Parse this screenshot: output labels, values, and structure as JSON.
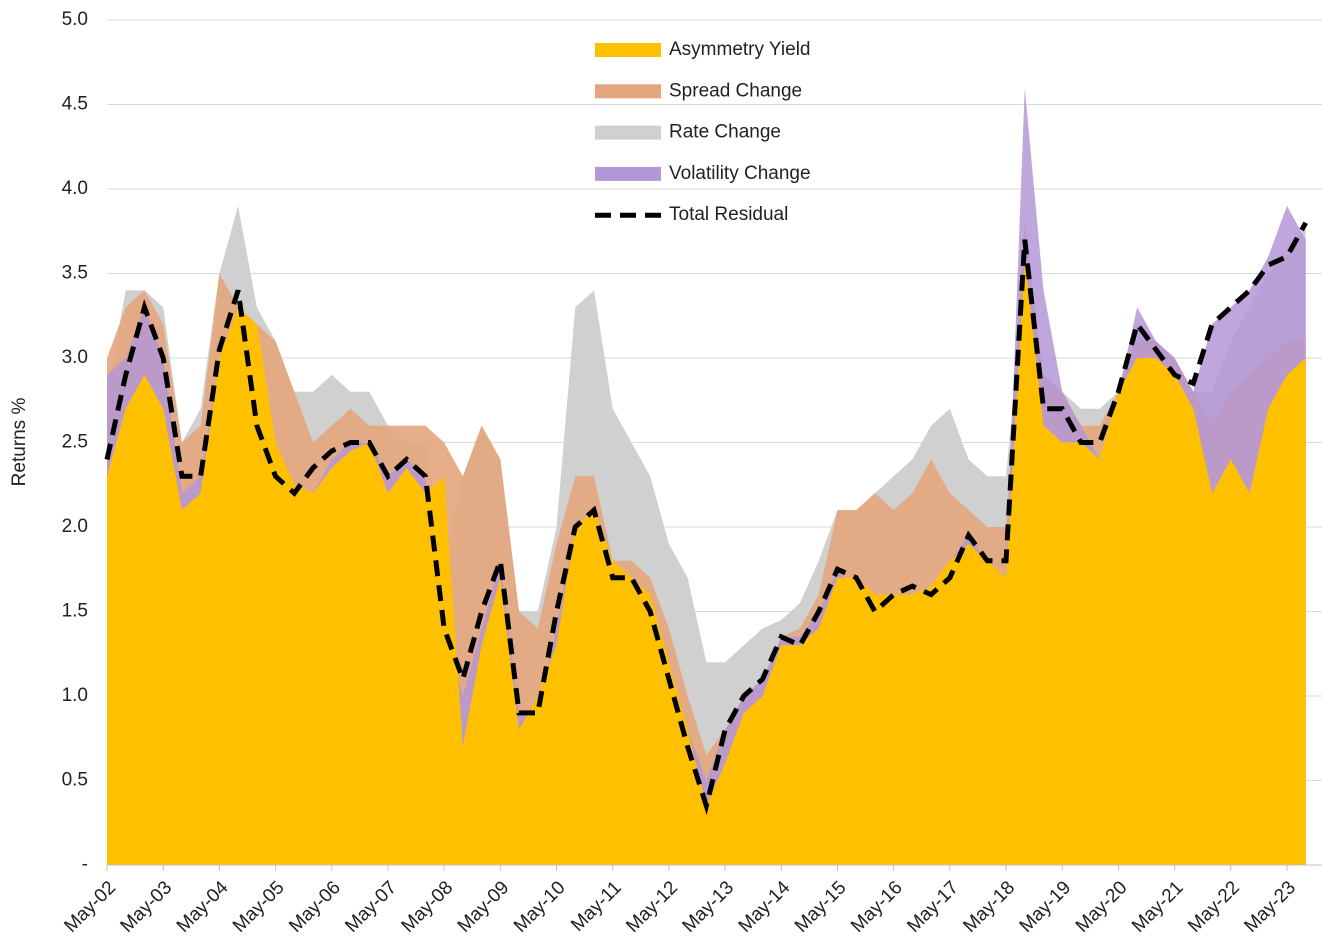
{
  "chart_data": {
    "type": "area",
    "y_label": "Returns %",
    "categories": [
      "May-02",
      null,
      null,
      "May-03",
      null,
      null,
      "May-04",
      null,
      null,
      "May-05",
      null,
      null,
      "May-06",
      null,
      null,
      "May-07",
      null,
      null,
      "May-08",
      null,
      null,
      "May-09",
      null,
      null,
      "May-10",
      null,
      null,
      "May-11",
      null,
      null,
      "May-12",
      null,
      null,
      "May-13",
      null,
      null,
      "May-14",
      null,
      null,
      "May-15",
      null,
      null,
      "May-16",
      null,
      null,
      "May-17",
      null,
      null,
      "May-18",
      null,
      null,
      "May-19",
      null,
      null,
      "May-20",
      null,
      null,
      "May-21",
      null,
      null,
      "May-22",
      null,
      null,
      "May-23",
      null
    ],
    "ylim": [
      0,
      5
    ],
    "yticks": [
      {
        "value": 0,
        "label": "-"
      },
      0.5,
      {
        "value": 1,
        "label": "1.0"
      },
      1.5,
      {
        "value": 2,
        "label": "2.0"
      },
      2.5,
      {
        "value": 3,
        "label": "3.0"
      },
      3.5,
      {
        "value": 4,
        "label": "4.0"
      },
      4.5,
      {
        "value": 5,
        "label": "5.0"
      }
    ],
    "grid": true,
    "series": [
      {
        "name": "Asymmetry Yield",
        "color": "#ffc000",
        "values": [
          2.3,
          2.7,
          2.9,
          2.7,
          2.1,
          2.2,
          3.0,
          3.3,
          3.2,
          2.5,
          2.25,
          2.2,
          2.35,
          2.45,
          2.5,
          2.2,
          2.35,
          2.2,
          2.3,
          0.7,
          1.3,
          1.7,
          0.8,
          1.0,
          1.3,
          2.0,
          2.1,
          1.8,
          1.7,
          1.6,
          1.2,
          0.8,
          0.35,
          0.6,
          0.9,
          1.0,
          1.3,
          1.3,
          1.4,
          1.7,
          1.7,
          1.6,
          1.6,
          1.6,
          1.65,
          1.8,
          1.9,
          1.8,
          1.7,
          3.6,
          2.6,
          2.5,
          2.5,
          2.4,
          2.8,
          3.0,
          3.0,
          2.9,
          2.7,
          2.2,
          2.4,
          2.2,
          2.7,
          2.9,
          3.0
        ]
      },
      {
        "name": "Spread Change",
        "color": "#e4a67c",
        "values": [
          3.0,
          3.3,
          3.4,
          3.2,
          2.5,
          2.6,
          3.5,
          3.3,
          3.2,
          3.1,
          2.8,
          2.5,
          2.6,
          2.7,
          2.6,
          2.6,
          2.6,
          2.6,
          2.5,
          2.3,
          2.6,
          2.4,
          1.5,
          1.4,
          1.9,
          2.3,
          2.3,
          1.8,
          1.8,
          1.7,
          1.4,
          1.0,
          0.65,
          0.8,
          1.0,
          1.1,
          1.35,
          1.4,
          1.6,
          2.1,
          2.1,
          2.2,
          2.1,
          2.2,
          2.4,
          2.2,
          2.1,
          2.0,
          2.0,
          3.8,
          2.9,
          2.8,
          2.6,
          2.6,
          2.8,
          3.1,
          3.1,
          3.0,
          2.8,
          2.6,
          2.8,
          2.9,
          3.0,
          3.1,
          3.1
        ]
      },
      {
        "name": "Rate Change",
        "color": "#d0d0d0",
        "values": [
          2.8,
          3.4,
          3.4,
          3.3,
          2.5,
          2.7,
          3.5,
          3.9,
          3.3,
          3.1,
          2.8,
          2.8,
          2.9,
          2.8,
          2.8,
          2.6,
          2.5,
          2.5,
          1.8,
          2.3,
          2.6,
          2.4,
          1.5,
          1.5,
          2.0,
          3.3,
          3.4,
          2.7,
          2.5,
          2.3,
          1.9,
          1.7,
          1.2,
          1.2,
          1.3,
          1.4,
          1.45,
          1.55,
          1.8,
          2.1,
          2.1,
          2.2,
          2.3,
          2.4,
          2.6,
          2.7,
          2.4,
          2.3,
          2.3,
          3.5,
          2.9,
          2.8,
          2.7,
          2.7,
          2.8,
          3.2,
          3.1,
          3.0,
          2.8,
          2.8,
          3.1,
          3.3,
          3.5,
          3.6,
          3.8
        ]
      },
      {
        "name": "Volatility Change",
        "color": "#b497d6",
        "values": [
          2.9,
          3.0,
          3.3,
          3.0,
          2.2,
          2.3,
          3.0,
          3.3,
          2.7,
          2.3,
          2.2,
          2.2,
          2.4,
          2.5,
          2.5,
          2.3,
          2.4,
          2.3,
          1.4,
          1.0,
          1.4,
          1.8,
          0.9,
          0.9,
          1.4,
          2.0,
          2.1,
          1.7,
          1.7,
          1.5,
          1.1,
          0.8,
          0.5,
          0.8,
          1.0,
          1.1,
          1.35,
          1.35,
          1.5,
          1.75,
          1.6,
          1.5,
          1.6,
          1.6,
          1.6,
          1.8,
          1.95,
          1.8,
          1.7,
          4.6,
          3.4,
          2.8,
          2.6,
          2.4,
          2.8,
          3.3,
          3.1,
          3.0,
          2.8,
          3.2,
          3.3,
          3.4,
          3.6,
          3.9,
          3.7
        ]
      },
      {
        "name": "Total Residual",
        "color": "#000000",
        "line": "dashed",
        "values": [
          2.4,
          2.9,
          3.3,
          3.0,
          2.3,
          2.3,
          3.05,
          3.4,
          2.6,
          2.3,
          2.2,
          2.35,
          2.45,
          2.5,
          2.5,
          2.3,
          2.4,
          2.3,
          1.4,
          1.1,
          1.5,
          1.8,
          0.9,
          0.9,
          1.5,
          2.0,
          2.1,
          1.7,
          1.7,
          1.5,
          1.1,
          0.7,
          0.35,
          0.8,
          1.0,
          1.1,
          1.35,
          1.3,
          1.5,
          1.75,
          1.7,
          1.5,
          1.6,
          1.65,
          1.6,
          1.7,
          1.95,
          1.8,
          1.8,
          3.7,
          2.7,
          2.7,
          2.5,
          2.5,
          2.8,
          3.2,
          3.05,
          2.9,
          2.85,
          3.2,
          3.3,
          3.4,
          3.55,
          3.6,
          3.8
        ]
      }
    ]
  }
}
